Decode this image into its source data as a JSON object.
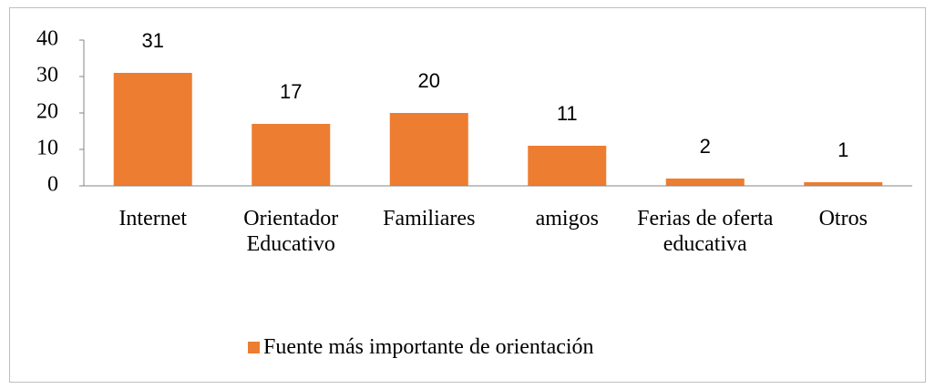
{
  "chart_data": {
    "type": "bar",
    "categories": [
      "Internet",
      "Orientador Educativo",
      "Familiares",
      "amigos",
      "Ferias de oferta educativa",
      "Otros"
    ],
    "series": [
      {
        "name": "Fuente más importante de orientación",
        "color": "#ed7d31",
        "values": [
          31,
          17,
          20,
          11,
          2,
          1
        ]
      }
    ],
    "ylim": [
      0,
      40
    ],
    "yticks": [
      0,
      10,
      20,
      30,
      40
    ],
    "grid": false,
    "legend": "bottom"
  }
}
